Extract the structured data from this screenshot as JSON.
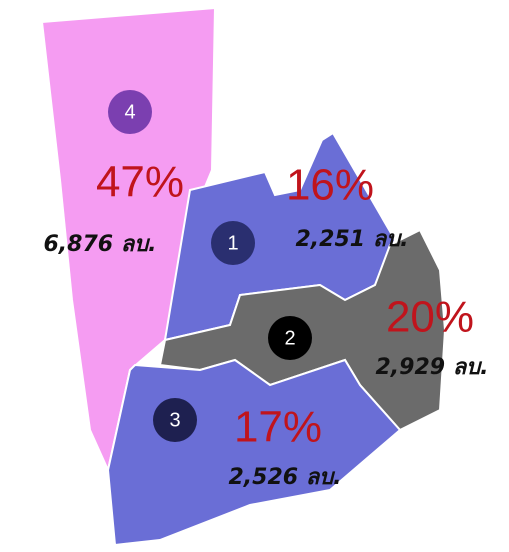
{
  "regions": [
    {
      "id": "4",
      "percent": "47%",
      "amount": "6,876 ลบ."
    },
    {
      "id": "1",
      "percent": "16%",
      "amount": "2,251 ลบ."
    },
    {
      "id": "2",
      "percent": "20%",
      "amount": "2,929 ลบ."
    },
    {
      "id": "3",
      "percent": "17%",
      "amount": "2,526 ลบ."
    }
  ]
}
